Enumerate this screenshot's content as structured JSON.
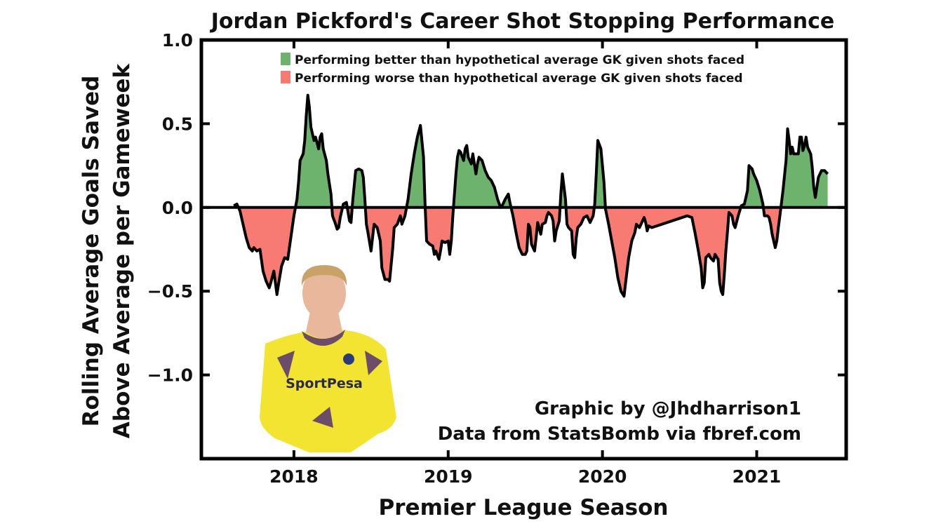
{
  "chart_data": {
    "type": "area",
    "title": "Jordan Pickford's Career Shot Stopping Performance",
    "xlabel": "Premier League Season",
    "ylabel_line1": "Rolling Average Goals Saved",
    "ylabel_line2": "Above Average per Gameweek",
    "xlim": [
      2017.4,
      2021.58
    ],
    "ylim": [
      -1.5,
      1.0
    ],
    "x_ticks": [
      {
        "value": 2018,
        "label": "2018"
      },
      {
        "value": 2019,
        "label": "2019"
      },
      {
        "value": 2020,
        "label": "2020"
      },
      {
        "value": 2021,
        "label": "2021"
      }
    ],
    "y_ticks": [
      {
        "value": 1.0,
        "label": "1.0"
      },
      {
        "value": 0.5,
        "label": "0.5"
      },
      {
        "value": 0.0,
        "label": "0.0"
      },
      {
        "value": -0.5,
        "label": "−0.5"
      },
      {
        "value": -1.0,
        "label": "−1.0"
      }
    ],
    "legend": [
      {
        "label": "Performing better than hypothetical average GK given shots faced",
        "color": "#6db36d"
      },
      {
        "label": "Performing worse than hypothetical average GK given shots faced",
        "color": "#f77b72"
      }
    ],
    "legend_position": "top-center",
    "grid": false,
    "positive_color": "#6db36d",
    "negative_color": "#f77b72",
    "line_color": "#000000",
    "series": [
      {
        "points": [
          [
            2017.61,
            0.01
          ],
          [
            2017.63,
            0.02
          ],
          [
            2017.65,
            -0.02
          ],
          [
            2017.67,
            -0.1
          ],
          [
            2017.69,
            -0.18
          ],
          [
            2017.71,
            -0.24
          ],
          [
            2017.73,
            -0.26
          ],
          [
            2017.74,
            -0.24
          ],
          [
            2017.76,
            -0.26
          ],
          [
            2017.78,
            -0.25
          ],
          [
            2017.8,
            -0.38
          ],
          [
            2017.82,
            -0.44
          ],
          [
            2017.84,
            -0.48
          ],
          [
            2017.85,
            -0.45
          ],
          [
            2017.87,
            -0.38
          ],
          [
            2017.88,
            -0.45
          ],
          [
            2017.89,
            -0.52
          ],
          [
            2017.9,
            -0.46
          ],
          [
            2017.92,
            -0.35
          ],
          [
            2017.94,
            -0.3
          ],
          [
            2017.96,
            -0.31
          ],
          [
            2017.98,
            -0.18
          ],
          [
            2018.0,
            -0.05
          ],
          [
            2018.02,
            0.05
          ],
          [
            2018.03,
            0.15
          ],
          [
            2018.04,
            0.28
          ],
          [
            2018.06,
            0.32
          ],
          [
            2018.07,
            0.4
          ],
          [
            2018.08,
            0.55
          ],
          [
            2018.09,
            0.67
          ],
          [
            2018.1,
            0.6
          ],
          [
            2018.11,
            0.48
          ],
          [
            2018.12,
            0.44
          ],
          [
            2018.13,
            0.4
          ],
          [
            2018.14,
            0.42
          ],
          [
            2018.16,
            0.35
          ],
          [
            2018.17,
            0.42
          ],
          [
            2018.18,
            0.44
          ],
          [
            2018.19,
            0.35
          ],
          [
            2018.21,
            0.28
          ],
          [
            2018.22,
            0.2
          ],
          [
            2018.24,
            0.08
          ],
          [
            2018.25,
            -0.05
          ],
          [
            2018.27,
            -0.1
          ],
          [
            2018.28,
            -0.13
          ],
          [
            2018.29,
            -0.12
          ],
          [
            2018.3,
            -0.06
          ],
          [
            2018.32,
            0.02
          ],
          [
            2018.34,
            0.03
          ],
          [
            2018.36,
            -0.08
          ],
          [
            2018.37,
            -0.09
          ],
          [
            2018.38,
            0.03
          ],
          [
            2018.4,
            0.22
          ],
          [
            2018.42,
            0.23
          ],
          [
            2018.44,
            0.22
          ],
          [
            2018.45,
            0.18
          ],
          [
            2018.46,
            0.05
          ],
          [
            2018.47,
            -0.1
          ],
          [
            2018.48,
            -0.15
          ],
          [
            2018.5,
            -0.26
          ],
          [
            2018.51,
            -0.18
          ],
          [
            2018.52,
            -0.1
          ],
          [
            2018.54,
            -0.12
          ],
          [
            2018.56,
            -0.2
          ],
          [
            2018.57,
            -0.36
          ],
          [
            2018.59,
            -0.43
          ],
          [
            2018.61,
            -0.43
          ],
          [
            2018.62,
            -0.44
          ],
          [
            2018.64,
            -0.25
          ],
          [
            2018.65,
            -0.12
          ],
          [
            2018.67,
            -0.1
          ],
          [
            2018.69,
            -0.05
          ],
          [
            2018.7,
            -0.1
          ],
          [
            2018.72,
            -0.05
          ],
          [
            2018.74,
            0.05
          ],
          [
            2018.76,
            0.2
          ],
          [
            2018.78,
            0.32
          ],
          [
            2018.8,
            0.42
          ],
          [
            2018.82,
            0.49
          ],
          [
            2018.84,
            0.3
          ],
          [
            2018.85,
            0.02
          ],
          [
            2018.86,
            -0.2
          ],
          [
            2018.88,
            -0.22
          ],
          [
            2018.9,
            -0.23
          ],
          [
            2018.91,
            -0.28
          ],
          [
            2018.92,
            -0.26
          ],
          [
            2018.94,
            -0.31
          ],
          [
            2018.95,
            -0.26
          ],
          [
            2018.96,
            -0.2
          ],
          [
            2018.98,
            -0.21
          ],
          [
            2019.0,
            -0.2
          ],
          [
            2019.01,
            -0.28
          ],
          [
            2019.02,
            -0.2
          ],
          [
            2019.03,
            -0.05
          ],
          [
            2019.05,
            0.2
          ],
          [
            2019.06,
            0.3
          ],
          [
            2019.07,
            0.34
          ],
          [
            2019.08,
            0.33
          ],
          [
            2019.1,
            0.28
          ],
          [
            2019.11,
            0.35
          ],
          [
            2019.12,
            0.37
          ],
          [
            2019.13,
            0.3
          ],
          [
            2019.15,
            0.26
          ],
          [
            2019.16,
            0.32
          ],
          [
            2019.17,
            0.26
          ],
          [
            2019.18,
            0.2
          ],
          [
            2019.19,
            0.26
          ],
          [
            2019.2,
            0.3
          ],
          [
            2019.22,
            0.28
          ],
          [
            2019.24,
            0.22
          ],
          [
            2019.26,
            0.18
          ],
          [
            2019.28,
            0.16
          ],
          [
            2019.3,
            0.12
          ],
          [
            2019.32,
            0.05
          ],
          [
            2019.34,
            0.0
          ],
          [
            2019.35,
            0.01
          ],
          [
            2019.37,
            0.05
          ],
          [
            2019.39,
            0.08
          ],
          [
            2019.4,
            0.03
          ],
          [
            2019.42,
            -0.05
          ],
          [
            2019.44,
            -0.15
          ],
          [
            2019.46,
            -0.24
          ],
          [
            2019.48,
            -0.28
          ],
          [
            2019.5,
            -0.28
          ],
          [
            2019.51,
            -0.26
          ],
          [
            2019.52,
            -0.1
          ],
          [
            2019.53,
            -0.12
          ],
          [
            2019.54,
            -0.22
          ],
          [
            2019.56,
            -0.26
          ],
          [
            2019.57,
            -0.18
          ],
          [
            2019.58,
            -0.09
          ],
          [
            2019.6,
            -0.16
          ],
          [
            2019.61,
            -0.1
          ],
          [
            2019.63,
            -0.09
          ],
          [
            2019.64,
            -0.05
          ],
          [
            2019.65,
            -0.03
          ],
          [
            2019.67,
            -0.05
          ],
          [
            2019.68,
            -0.08
          ],
          [
            2019.69,
            -0.2
          ],
          [
            2019.7,
            -0.14
          ],
          [
            2019.72,
            -0.08
          ],
          [
            2019.73,
            0.08
          ],
          [
            2019.74,
            0.2
          ],
          [
            2019.76,
            0.05
          ],
          [
            2019.77,
            -0.1
          ],
          [
            2019.78,
            -0.12
          ],
          [
            2019.8,
            -0.14
          ],
          [
            2019.81,
            -0.28
          ],
          [
            2019.82,
            -0.3
          ],
          [
            2019.83,
            -0.18
          ],
          [
            2019.84,
            -0.12
          ],
          [
            2019.86,
            -0.1
          ],
          [
            2019.88,
            -0.06
          ],
          [
            2019.9,
            -0.05
          ],
          [
            2019.92,
            -0.09
          ],
          [
            2019.94,
            -0.05
          ],
          [
            2019.95,
            0.02
          ],
          [
            2019.96,
            0.2
          ],
          [
            2019.97,
            0.4
          ],
          [
            2019.99,
            0.35
          ],
          [
            2020.01,
            0.15
          ],
          [
            2020.02,
            -0.01
          ],
          [
            2020.04,
            -0.1
          ],
          [
            2020.06,
            -0.2
          ],
          [
            2020.08,
            -0.3
          ],
          [
            2020.1,
            -0.42
          ],
          [
            2020.12,
            -0.5
          ],
          [
            2020.14,
            -0.53
          ],
          [
            2020.15,
            -0.45
          ],
          [
            2020.17,
            -0.3
          ],
          [
            2020.19,
            -0.2
          ],
          [
            2020.21,
            -0.15
          ],
          [
            2020.22,
            -0.1
          ],
          [
            2020.24,
            -0.12
          ],
          [
            2020.25,
            -0.1
          ],
          [
            2020.27,
            -0.06
          ],
          [
            2020.28,
            -0.09
          ],
          [
            2020.29,
            -0.14
          ],
          [
            2020.3,
            -0.11
          ],
          [
            2020.32,
            -0.12
          ],
          [
            2020.55,
            -0.05
          ],
          [
            2020.58,
            -0.06
          ],
          [
            2020.6,
            -0.15
          ],
          [
            2020.62,
            -0.25
          ],
          [
            2020.64,
            -0.36
          ],
          [
            2020.65,
            -0.48
          ],
          [
            2020.66,
            -0.45
          ],
          [
            2020.67,
            -0.3
          ],
          [
            2020.69,
            -0.28
          ],
          [
            2020.7,
            -0.3
          ],
          [
            2020.72,
            -0.32
          ],
          [
            2020.73,
            -0.28
          ],
          [
            2020.75,
            -0.31
          ],
          [
            2020.76,
            -0.45
          ],
          [
            2020.77,
            -0.5
          ],
          [
            2020.78,
            -0.52
          ],
          [
            2020.79,
            -0.4
          ],
          [
            2020.8,
            -0.26
          ],
          [
            2020.81,
            -0.15
          ],
          [
            2020.82,
            -0.03
          ],
          [
            2020.84,
            -0.05
          ],
          [
            2020.85,
            -0.1
          ],
          [
            2020.86,
            -0.12
          ],
          [
            2020.88,
            -0.05
          ],
          [
            2020.9,
            0.01
          ],
          [
            2020.92,
            0.02
          ],
          [
            2020.94,
            0.1
          ],
          [
            2020.95,
            0.25
          ],
          [
            2020.97,
            0.23
          ],
          [
            2020.98,
            0.2
          ],
          [
            2021.0,
            0.16
          ],
          [
            2021.02,
            0.1
          ],
          [
            2021.04,
            0.02
          ],
          [
            2021.05,
            -0.05
          ],
          [
            2021.07,
            -0.05
          ],
          [
            2021.08,
            -0.06
          ],
          [
            2021.09,
            -0.1
          ],
          [
            2021.1,
            -0.16
          ],
          [
            2021.12,
            -0.24
          ],
          [
            2021.13,
            -0.2
          ],
          [
            2021.14,
            -0.12
          ],
          [
            2021.15,
            -0.05
          ],
          [
            2021.17,
            0.1
          ],
          [
            2021.19,
            0.28
          ],
          [
            2021.2,
            0.47
          ],
          [
            2021.21,
            0.4
          ],
          [
            2021.22,
            0.32
          ],
          [
            2021.23,
            0.36
          ],
          [
            2021.24,
            0.32
          ],
          [
            2021.26,
            0.32
          ],
          [
            2021.27,
            0.32
          ],
          [
            2021.28,
            0.42
          ],
          [
            2021.29,
            0.42
          ],
          [
            2021.3,
            0.34
          ],
          [
            2021.31,
            0.37
          ],
          [
            2021.32,
            0.42
          ],
          [
            2021.33,
            0.36
          ],
          [
            2021.35,
            0.32
          ],
          [
            2021.36,
            0.24
          ],
          [
            2021.37,
            0.12
          ],
          [
            2021.38,
            0.06
          ],
          [
            2021.39,
            0.12
          ],
          [
            2021.4,
            0.18
          ],
          [
            2021.42,
            0.22
          ],
          [
            2021.44,
            0.22
          ],
          [
            2021.46,
            0.2
          ]
        ]
      }
    ]
  },
  "photo": {
    "description_icon": "goalkeeper-photo",
    "shirt_sponsor": "SportPesa",
    "shirt_color": "#f3e431",
    "skin_color": "#e8b79c",
    "hair_color": "#c9a26a",
    "trim_color": "#6b4d6a"
  },
  "credits": {
    "line1": "Graphic by @Jhdharrison1",
    "line2": "Data from StatsBomb via fbref.com"
  }
}
